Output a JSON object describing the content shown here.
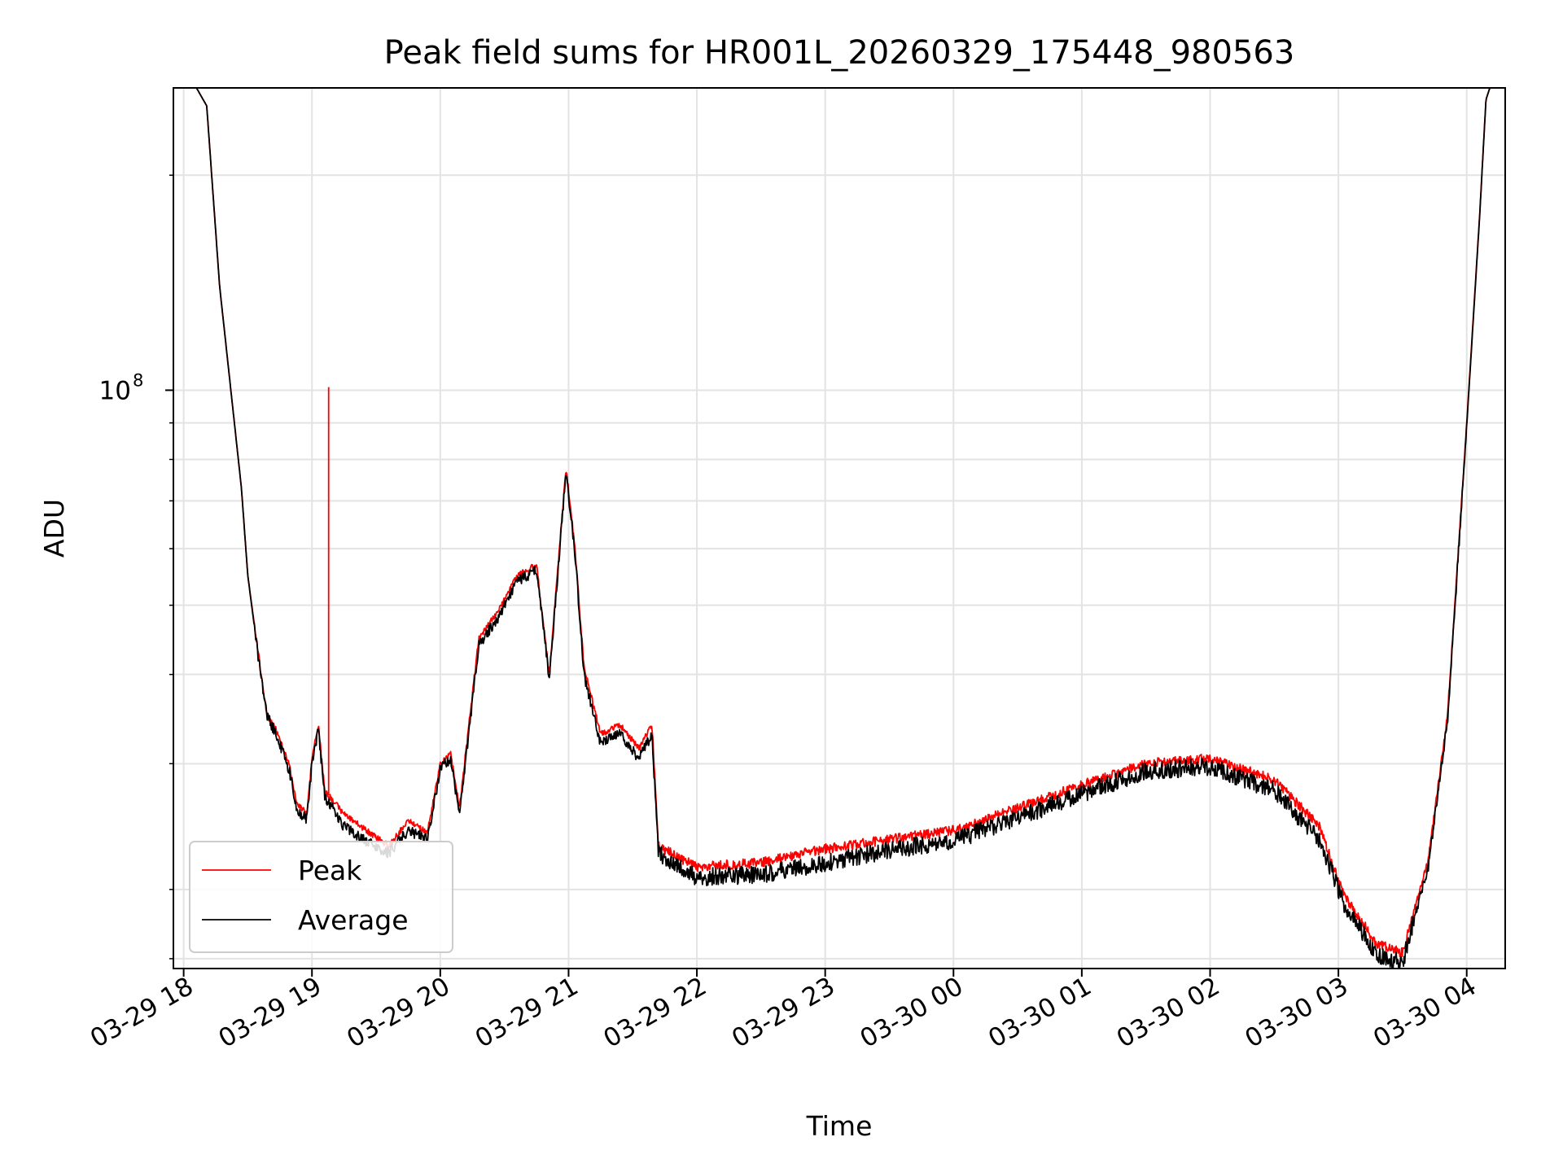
{
  "chart_data": {
    "type": "line",
    "title": "Peak field sums for HR001L_20260329_175448_980563",
    "xlabel": "Time",
    "ylabel": "ADU",
    "y_scale": "log",
    "ylim": [
      15500000,
      265000000
    ],
    "xlim_hours_since_2026-03-29T17:00": [
      0.92,
      11.3
    ],
    "grid": true,
    "legend_position": "lower-left",
    "x_ticks": [
      {
        "label": "03-29 18",
        "hour": 1
      },
      {
        "label": "03-29 19",
        "hour": 2
      },
      {
        "label": "03-29 20",
        "hour": 3
      },
      {
        "label": "03-29 21",
        "hour": 4
      },
      {
        "label": "03-29 22",
        "hour": 5
      },
      {
        "label": "03-29 23",
        "hour": 6
      },
      {
        "label": "03-30 00",
        "hour": 7
      },
      {
        "label": "03-30 01",
        "hour": 8
      },
      {
        "label": "03-30 02",
        "hour": 9
      },
      {
        "label": "03-30 03",
        "hour": 10
      },
      {
        "label": "03-30 04",
        "hour": 11
      }
    ],
    "y_major_ticks": [
      {
        "base": "10",
        "exp": "8",
        "value": 100000000
      }
    ],
    "y_minor_ticks": [
      16000000,
      20000000,
      30000000,
      40000000,
      50000000,
      60000000,
      70000000,
      80000000,
      90000000,
      200000000
    ],
    "series": [
      {
        "name": "Peak",
        "color": "#ff0000",
        "spike": {
          "hour": 2.13,
          "value": 101000000
        },
        "points": [
          [
            0.92,
            265000000
          ],
          [
            1.1,
            265000000
          ],
          [
            1.18,
            250000000
          ],
          [
            1.28,
            140000000
          ],
          [
            1.45,
            73000000
          ],
          [
            1.5,
            55000000
          ],
          [
            1.58,
            43000000
          ],
          [
            1.65,
            35000000
          ],
          [
            1.72,
            33500000
          ],
          [
            1.82,
            30000000
          ],
          [
            1.88,
            26500000
          ],
          [
            1.96,
            25500000
          ],
          [
            2.0,
            30500000
          ],
          [
            2.05,
            34000000
          ],
          [
            2.1,
            27500000
          ],
          [
            2.25,
            25500000
          ],
          [
            2.45,
            24000000
          ],
          [
            2.6,
            23000000
          ],
          [
            2.75,
            25000000
          ],
          [
            2.9,
            24000000
          ],
          [
            3.0,
            30000000
          ],
          [
            3.08,
            31000000
          ],
          [
            3.15,
            26000000
          ],
          [
            3.3,
            45000000
          ],
          [
            3.45,
            49000000
          ],
          [
            3.6,
            55000000
          ],
          [
            3.75,
            57000000
          ],
          [
            3.85,
            40000000
          ],
          [
            3.98,
            78000000
          ],
          [
            4.05,
            60000000
          ],
          [
            4.12,
            41000000
          ],
          [
            4.25,
            33000000
          ],
          [
            4.4,
            34000000
          ],
          [
            4.55,
            31500000
          ],
          [
            4.65,
            34000000
          ],
          [
            4.7,
            23000000
          ],
          [
            5.0,
            21500000
          ],
          [
            5.5,
            21800000
          ],
          [
            6.0,
            22800000
          ],
          [
            6.5,
            23500000
          ],
          [
            7.0,
            24200000
          ],
          [
            7.5,
            26000000
          ],
          [
            8.0,
            28000000
          ],
          [
            8.5,
            30000000
          ],
          [
            9.0,
            30500000
          ],
          [
            9.5,
            28500000
          ],
          [
            9.85,
            24500000
          ],
          [
            10.05,
            19500000
          ],
          [
            10.3,
            16800000
          ],
          [
            10.5,
            16300000
          ],
          [
            10.7,
            22000000
          ],
          [
            10.85,
            35000000
          ],
          [
            11.0,
            90000000
          ],
          [
            11.1,
            175000000
          ],
          [
            11.15,
            255000000
          ],
          [
            11.18,
            265000000
          ],
          [
            11.3,
            265000000
          ]
        ]
      },
      {
        "name": "Average",
        "color": "#000000",
        "points": [
          [
            0.92,
            265000000
          ],
          [
            1.1,
            265000000
          ],
          [
            1.18,
            250000000
          ],
          [
            1.28,
            140000000
          ],
          [
            1.45,
            73000000
          ],
          [
            1.5,
            55000000
          ],
          [
            1.58,
            42500000
          ],
          [
            1.65,
            35000000
          ],
          [
            1.72,
            33000000
          ],
          [
            1.82,
            29500000
          ],
          [
            1.88,
            26000000
          ],
          [
            1.96,
            25000000
          ],
          [
            2.0,
            30000000
          ],
          [
            2.05,
            33500000
          ],
          [
            2.1,
            27000000
          ],
          [
            2.25,
            24500000
          ],
          [
            2.45,
            23200000
          ],
          [
            2.6,
            22500000
          ],
          [
            2.75,
            24200000
          ],
          [
            2.9,
            23500000
          ],
          [
            3.0,
            29500000
          ],
          [
            3.08,
            30500000
          ],
          [
            3.15,
            25500000
          ],
          [
            3.3,
            44000000
          ],
          [
            3.45,
            48000000
          ],
          [
            3.6,
            54000000
          ],
          [
            3.75,
            56000000
          ],
          [
            3.85,
            39500000
          ],
          [
            3.98,
            77000000
          ],
          [
            4.05,
            59000000
          ],
          [
            4.12,
            40000000
          ],
          [
            4.25,
            32000000
          ],
          [
            4.4,
            33000000
          ],
          [
            4.55,
            30500000
          ],
          [
            4.65,
            33000000
          ],
          [
            4.7,
            22500000
          ],
          [
            5.0,
            20800000
          ],
          [
            5.5,
            21000000
          ],
          [
            6.0,
            21800000
          ],
          [
            6.5,
            22700000
          ],
          [
            7.0,
            23400000
          ],
          [
            7.5,
            25200000
          ],
          [
            8.0,
            27200000
          ],
          [
            8.5,
            29300000
          ],
          [
            9.0,
            29700000
          ],
          [
            9.5,
            27500000
          ],
          [
            9.85,
            23500000
          ],
          [
            10.05,
            19000000
          ],
          [
            10.3,
            16200000
          ],
          [
            10.5,
            15800000
          ],
          [
            10.7,
            21500000
          ],
          [
            10.85,
            34500000
          ],
          [
            11.0,
            89000000
          ],
          [
            11.1,
            174000000
          ],
          [
            11.15,
            255000000
          ],
          [
            11.18,
            265000000
          ],
          [
            11.3,
            265000000
          ]
        ]
      }
    ]
  }
}
